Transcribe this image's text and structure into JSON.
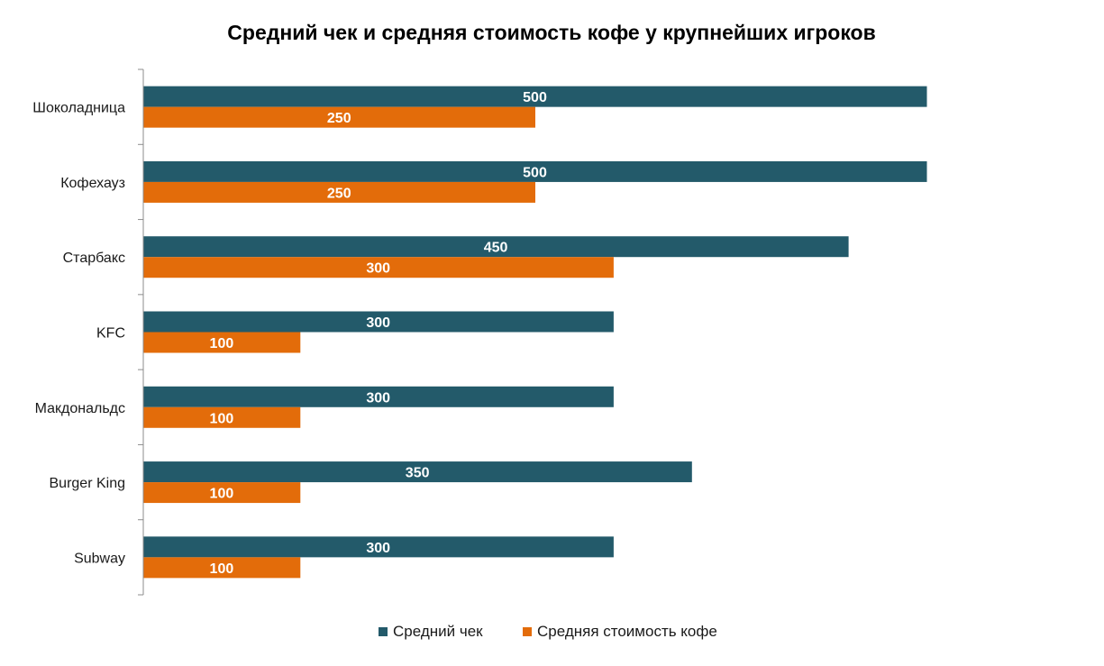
{
  "chart_data": {
    "type": "bar",
    "orientation": "horizontal",
    "title": "Средний чек и средняя стоимость кофе у крупнейших игроков",
    "categories": [
      "Шоколадница",
      "Кофехауз",
      "Старбакс",
      "KFC",
      "Макдональдс",
      "Burger King",
      "Subway"
    ],
    "series": [
      {
        "name": "Средний чек",
        "color": "#235A6A",
        "values": [
          500,
          500,
          450,
          300,
          300,
          350,
          300
        ]
      },
      {
        "name": "Средняя стоимость кофе",
        "color": "#E36C0A",
        "values": [
          250,
          250,
          300,
          100,
          100,
          100,
          100
        ]
      }
    ],
    "xlim": [
      0,
      500
    ],
    "grid": false,
    "data_labels": true,
    "legend_position": "bottom"
  }
}
